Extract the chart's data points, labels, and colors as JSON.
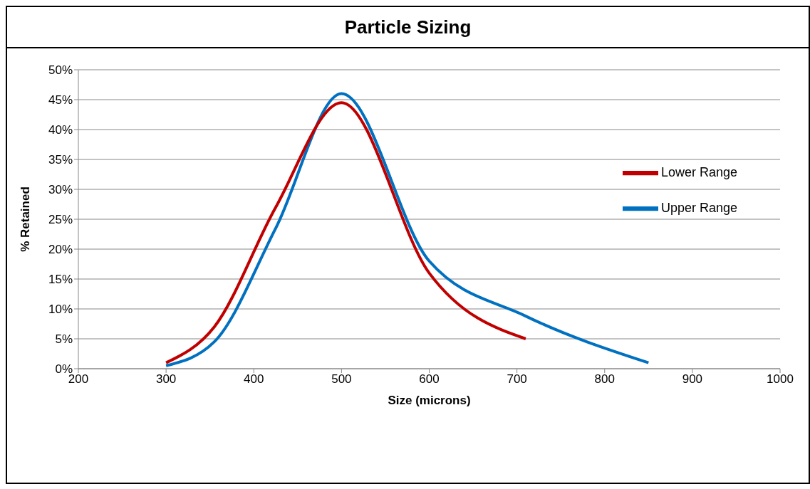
{
  "chart_data": {
    "type": "line",
    "title": "Particle Sizing",
    "xlabel": "Size (microns)",
    "ylabel": "% Retained",
    "xlim": [
      200,
      1000
    ],
    "xticks": [
      200,
      300,
      400,
      500,
      600,
      700,
      800,
      900,
      1000
    ],
    "ylim": [
      0,
      50
    ],
    "yticks": [
      {
        "value": 0,
        "label": "0%"
      },
      {
        "value": 5,
        "label": "5%"
      },
      {
        "value": 10,
        "label": "10%"
      },
      {
        "value": 15,
        "label": "15%"
      },
      {
        "value": 20,
        "label": "20%"
      },
      {
        "value": 25,
        "label": "25%"
      },
      {
        "value": 30,
        "label": "30%"
      },
      {
        "value": 35,
        "label": "35%"
      },
      {
        "value": 40,
        "label": "40%"
      },
      {
        "value": 45,
        "label": "45%"
      },
      {
        "value": 50,
        "label": "50%"
      }
    ],
    "grid": "y",
    "legend": "right",
    "marker": "none",
    "line_style": "solid",
    "series": [
      {
        "name": "Upper Range",
        "color": "#0070c0",
        "x": [
          300,
          355,
          425,
          500,
          600,
          710,
          850
        ],
        "values": [
          0.5,
          4.5,
          23.5,
          46,
          18,
          8.8,
          1
        ]
      },
      {
        "name": "Lower Range",
        "color": "#c00000",
        "x": [
          300,
          355,
          425,
          500,
          600,
          710
        ],
        "values": [
          1,
          7,
          27,
          44.5,
          16,
          5
        ]
      }
    ]
  }
}
